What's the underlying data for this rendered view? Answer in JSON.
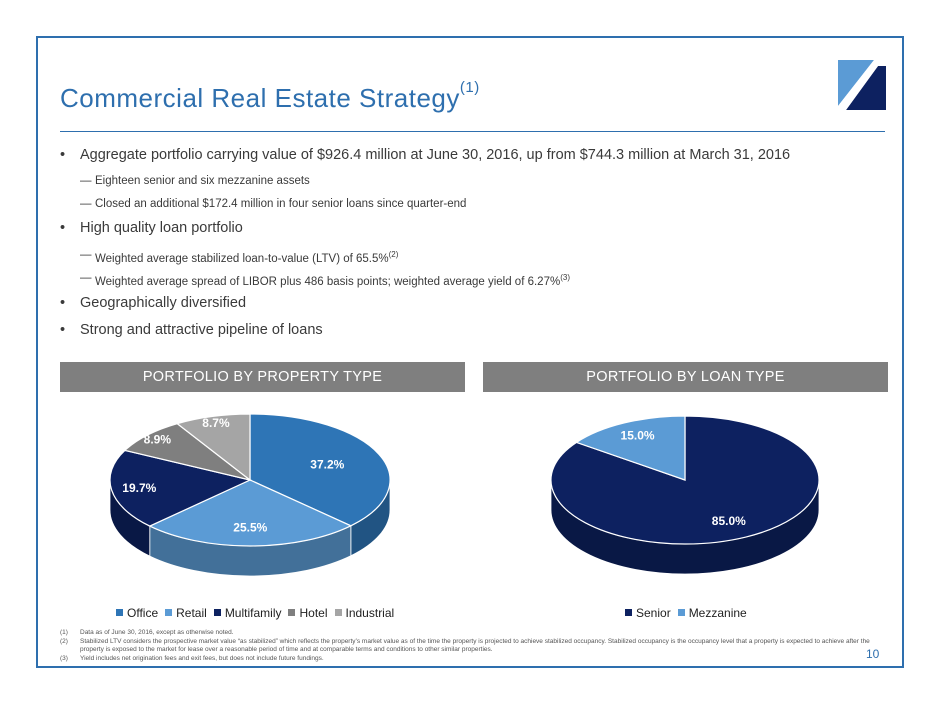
{
  "slide": {
    "title": "Commercial Real Estate Strategy",
    "title_sup": "(1)",
    "page_number": "10"
  },
  "bullets": [
    {
      "level": 1,
      "text": "Aggregate portfolio carrying value of $926.4 million at June 30, 2016, up from $744.3 million at March 31, 2016",
      "sup": ""
    },
    {
      "level": 2,
      "text": "Eighteen senior and six mezzanine assets",
      "sup": ""
    },
    {
      "level": 2,
      "text": "Closed an additional $172.4 million in four senior loans since quarter-end",
      "sup": ""
    },
    {
      "level": 1,
      "text": "High quality loan portfolio",
      "sup": ""
    },
    {
      "level": 2,
      "text": "Weighted average stabilized loan-to-value (LTV) of 65.5%",
      "sup": "(2)"
    },
    {
      "level": 2,
      "text": "Weighted average spread of LIBOR plus 486 basis points; weighted average yield of 6.27%",
      "sup": "(3)"
    },
    {
      "level": 1,
      "text": "Geographically diversified",
      "sup": ""
    },
    {
      "level": 1,
      "text": "Strong and attractive pipeline of loans",
      "sup": ""
    }
  ],
  "bullet_glyphs": {
    "level1": "•",
    "level2": "—"
  },
  "colors": {
    "accent": "#2e6fae",
    "header_bg": "#7f7f7f",
    "office": "#2e75b6",
    "retail": "#5b9bd5",
    "multifamily": "#0d2160",
    "hotel": "#7f7f7f",
    "industrial": "#a5a5a5",
    "senior": "#0d2160",
    "mezzanine": "#5b9bd5"
  },
  "chart_data": [
    {
      "type": "pie",
      "title": "PORTFOLIO BY PROPERTY TYPE",
      "categories": [
        "Office",
        "Retail",
        "Multifamily",
        "Hotel",
        "Industrial"
      ],
      "values": [
        37.2,
        25.5,
        19.7,
        8.9,
        8.7
      ],
      "labels": [
        "37.2%",
        "25.5%",
        "19.7%",
        "8.9%",
        "8.7%"
      ],
      "colors": [
        "#2e75b6",
        "#5b9bd5",
        "#0d2160",
        "#7f7f7f",
        "#a5a5a5"
      ],
      "legend": "bottom"
    },
    {
      "type": "pie",
      "title": "PORTFOLIO BY LOAN TYPE",
      "categories": [
        "Senior",
        "Mezzanine"
      ],
      "values": [
        85.0,
        15.0
      ],
      "labels": [
        "85.0%",
        "15.0%"
      ],
      "colors": [
        "#0d2160",
        "#5b9bd5"
      ],
      "legend": "bottom"
    }
  ],
  "footnotes": [
    {
      "num": "(1)",
      "text": "Data as of June 30, 2016, except as otherwise noted."
    },
    {
      "num": "(2)",
      "text": "Stabilized LTV considers the prospective market value “as stabilized” which reflects the property’s market value as of the time the property is projected to achieve stabilized occupancy. Stabilized occupancy is the occupancy level that a property is expected to achieve after the property is exposed to the market for lease over a reasonable period of time and at comparable terms and conditions to other similar properties."
    },
    {
      "num": "(3)",
      "text": "Yield includes net origination fees and exit fees, but does not include future fundings."
    }
  ]
}
